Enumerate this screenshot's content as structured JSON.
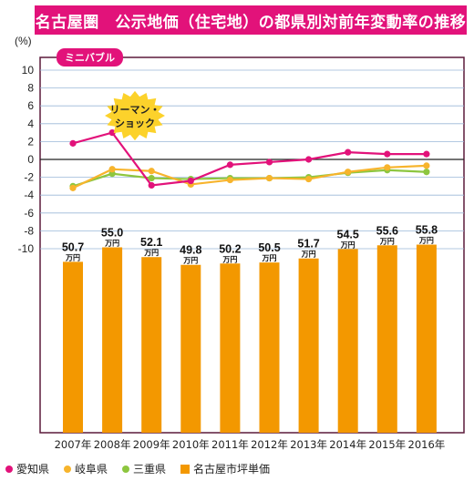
{
  "title": "名古屋圏　公示地価（住宅地）の都県別対前年変動率の推移",
  "unit_label": "(%)",
  "badge": "ミニバブル",
  "burst_label": [
    "リーマン・",
    "ショック"
  ],
  "colors": {
    "aichi": "#e2127a",
    "gifu": "#f7b42c",
    "mie": "#8dc63f",
    "bar": "#f39800",
    "title_bg": "#e2127a",
    "burst": "#fcd22b",
    "border": "#5b1a3a"
  },
  "legend": [
    {
      "label": "愛知県",
      "color_key": "aichi",
      "shape": "dot"
    },
    {
      "label": "岐阜県",
      "color_key": "gifu",
      "shape": "dot"
    },
    {
      "label": "三重県",
      "color_key": "mie",
      "shape": "dot"
    },
    {
      "label": "名古屋市坪単価",
      "color_key": "bar",
      "shape": "square"
    }
  ],
  "chart_data": [
    {
      "type": "line",
      "x": [
        "2007年",
        "2008年",
        "2009年",
        "2010年",
        "2011年",
        "2012年",
        "2013年",
        "2014年",
        "2015年",
        "2016年"
      ],
      "y_ticks": [
        10,
        8,
        6,
        4,
        2,
        0,
        -2,
        -4,
        -6,
        -8,
        -10
      ],
      "ylim": [
        -10,
        10
      ],
      "series": [
        {
          "name": "愛知県",
          "values": [
            1.8,
            3.0,
            -2.9,
            -2.4,
            -0.6,
            -0.3,
            0.0,
            0.8,
            0.6,
            0.6
          ]
        },
        {
          "name": "岐阜県",
          "values": [
            -3.2,
            -1.1,
            -1.3,
            -2.8,
            -2.3,
            -2.1,
            -2.2,
            -1.4,
            -0.9,
            -0.7
          ]
        },
        {
          "name": "三重県",
          "values": [
            -3.0,
            -1.6,
            -2.1,
            -2.2,
            -2.1,
            -2.1,
            -2.0,
            -1.5,
            -1.2,
            -1.4
          ]
        }
      ]
    },
    {
      "type": "bar",
      "categories": [
        "2007年",
        "2008年",
        "2009年",
        "2010年",
        "2011年",
        "2012年",
        "2013年",
        "2014年",
        "2015年",
        "2016年"
      ],
      "series": [
        {
          "name": "名古屋市坪単価",
          "values": [
            50.7,
            55.0,
            52.1,
            49.8,
            50.2,
            50.5,
            51.7,
            54.5,
            55.6,
            55.8
          ]
        }
      ],
      "value_labels": [
        "50.7",
        "55.0",
        "52.1",
        "49.8",
        "50.2",
        "50.5",
        "51.7",
        "54.5",
        "55.6",
        "55.8"
      ],
      "value_unit": "万円"
    }
  ]
}
